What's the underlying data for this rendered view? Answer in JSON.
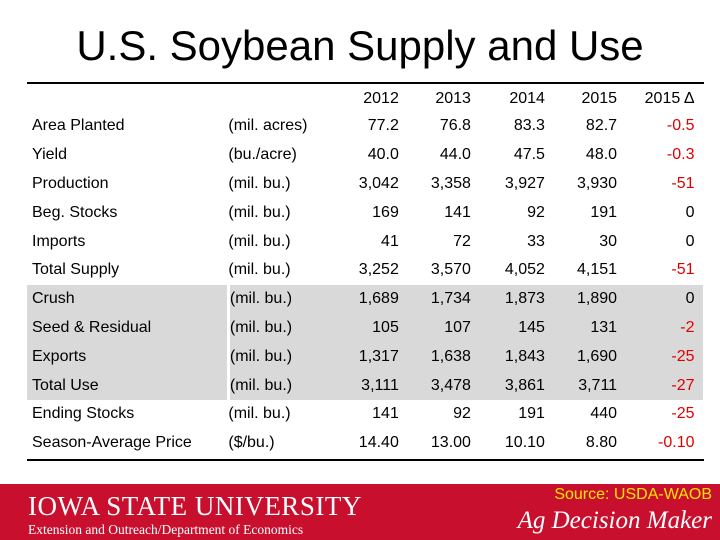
{
  "title": "U.S. Soybean Supply and Use",
  "header": [
    "",
    "",
    "2012",
    "2013",
    "2014",
    "2015",
    "2015 Δ"
  ],
  "rows": [
    {
      "label": "Area Planted",
      "unit": "(mil. acres)",
      "v": [
        "77.2",
        "76.8",
        "83.3",
        "82.7",
        "-0.5"
      ],
      "shaded": false,
      "delta_negative": true
    },
    {
      "label": "Yield",
      "unit": "(bu./acre)",
      "v": [
        "40.0",
        "44.0",
        "47.5",
        "48.0",
        "-0.3"
      ],
      "shaded": false,
      "delta_negative": true
    },
    {
      "label": "Production",
      "unit": "(mil. bu.)",
      "v": [
        "3,042",
        "3,358",
        "3,927",
        "3,930",
        "-51"
      ],
      "shaded": false,
      "delta_negative": true
    },
    {
      "label": "Beg. Stocks",
      "unit": "(mil. bu.)",
      "v": [
        "169",
        "141",
        "92",
        "191",
        "0"
      ],
      "shaded": false,
      "delta_negative": false
    },
    {
      "label": "Imports",
      "unit": "(mil. bu.)",
      "v": [
        "41",
        "72",
        "33",
        "30",
        "0"
      ],
      "shaded": false,
      "delta_negative": false
    },
    {
      "label": "Total Supply",
      "unit": "(mil. bu.)",
      "v": [
        "3,252",
        "3,570",
        "4,052",
        "4,151",
        "-51"
      ],
      "shaded": false,
      "delta_negative": true
    },
    {
      "label": "Crush",
      "unit": "(mil. bu.)",
      "v": [
        "1,689",
        "1,734",
        "1,873",
        "1,890",
        "0"
      ],
      "shaded": true,
      "delta_negative": false
    },
    {
      "label": "Seed & Residual",
      "unit": "(mil. bu.)",
      "v": [
        "105",
        "107",
        "145",
        "131",
        "-2"
      ],
      "shaded": true,
      "delta_negative": true
    },
    {
      "label": "Exports",
      "unit": "(mil. bu.)",
      "v": [
        "1,317",
        "1,638",
        "1,843",
        "1,690",
        "-25"
      ],
      "shaded": true,
      "delta_negative": true
    },
    {
      "label": "Total Use",
      "unit": "(mil. bu.)",
      "v": [
        "3,111",
        "3,478",
        "3,861",
        "3,711",
        "-27"
      ],
      "shaded": true,
      "delta_negative": true
    },
    {
      "label": "Ending Stocks",
      "unit": "(mil. bu.)",
      "v": [
        "141",
        "92",
        "191",
        "440",
        "-25"
      ],
      "shaded": false,
      "delta_negative": true
    },
    {
      "label": "Season-Average Price",
      "unit": "($/bu.)",
      "v": [
        "14.40",
        "13.00",
        "10.10",
        "8.80",
        "-0.10"
      ],
      "shaded": false,
      "delta_negative": true
    }
  ],
  "footer": {
    "university": "IOWA STATE UNIVERSITY",
    "department": "Extension and Outreach/Department of Economics",
    "source": "Source: USDA-WAOB",
    "brand": "Ag Decision Maker"
  },
  "colors": {
    "footer_bg": "#c8102e",
    "shade": "#d9d9d9",
    "negative": "#e00000",
    "source_text": "#ffe600"
  }
}
